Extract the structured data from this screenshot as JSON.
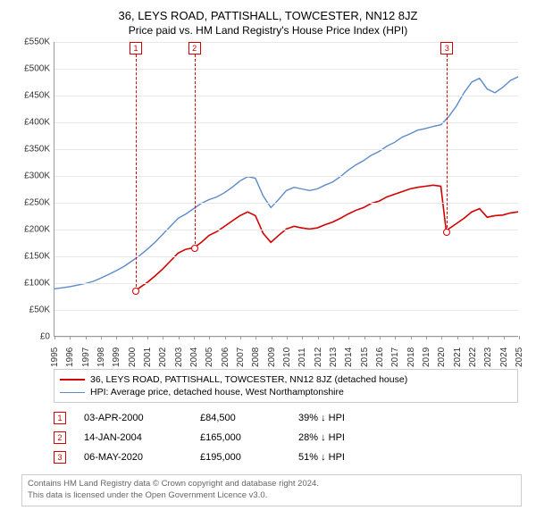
{
  "title": "36, LEYS ROAD, PATTISHALL, TOWCESTER, NN12 8JZ",
  "subtitle": "Price paid vs. HM Land Registry's House Price Index (HPI)",
  "chart": {
    "type": "line",
    "background_color": "#ffffff",
    "grid_color": "#e8e8e8",
    "axis_color": "#999999",
    "x": {
      "min": 1995,
      "max": 2025,
      "ticks": [
        1995,
        1996,
        1997,
        1998,
        1999,
        2000,
        2001,
        2002,
        2003,
        2004,
        2005,
        2006,
        2007,
        2008,
        2009,
        2010,
        2011,
        2012,
        2013,
        2014,
        2015,
        2016,
        2017,
        2018,
        2019,
        2020,
        2021,
        2022,
        2023,
        2024,
        2025
      ],
      "label_fontsize": 10,
      "label_rotation_deg": -90
    },
    "y": {
      "min": 0,
      "max": 550000,
      "ticks": [
        0,
        50000,
        100000,
        150000,
        200000,
        250000,
        300000,
        350000,
        400000,
        450000,
        500000,
        550000
      ],
      "tick_labels": [
        "£0",
        "£50K",
        "£100K",
        "£150K",
        "£200K",
        "£250K",
        "£300K",
        "£350K",
        "£400K",
        "£450K",
        "£500K",
        "£550K"
      ],
      "label_fontsize": 10
    },
    "series": [
      {
        "name": "price_paid",
        "label": "36, LEYS ROAD, PATTISHALL, TOWCESTER, NN12 8JZ (detached house)",
        "color": "#d40000",
        "line_width": 1.6,
        "x": [
          2000.25,
          2000.5,
          2001,
          2001.5,
          2002,
          2002.5,
          2003,
          2003.5,
          2004.04,
          2004.5,
          2005,
          2005.5,
          2006,
          2006.5,
          2007,
          2007.5,
          2008,
          2008.5,
          2009,
          2009.5,
          2010,
          2010.5,
          2011,
          2011.5,
          2012,
          2012.5,
          2013,
          2013.5,
          2014,
          2014.5,
          2015,
          2015.5,
          2016,
          2016.5,
          2017,
          2017.5,
          2018,
          2018.5,
          2019,
          2019.5,
          2020,
          2020.35,
          2020.5,
          2021,
          2021.5,
          2022,
          2022.5,
          2023,
          2023.5,
          2024,
          2024.5,
          2025
        ],
        "y": [
          84500,
          90000,
          100000,
          112000,
          125000,
          140000,
          155000,
          162000,
          165000,
          175000,
          188000,
          195000,
          205000,
          215000,
          225000,
          232000,
          225000,
          192000,
          175000,
          188000,
          200000,
          205000,
          202000,
          200000,
          202000,
          208000,
          213000,
          220000,
          228000,
          235000,
          240000,
          248000,
          252000,
          260000,
          265000,
          270000,
          275000,
          278000,
          280000,
          282000,
          280000,
          195000,
          200000,
          210000,
          220000,
          232000,
          238000,
          222000,
          225000,
          226000,
          230000,
          232000
        ]
      },
      {
        "name": "hpi",
        "label": "HPI: Average price, detached house, West Northamptonshire",
        "color": "#5b8bc9",
        "line_width": 1.4,
        "x": [
          1995,
          1995.5,
          1996,
          1996.5,
          1997,
          1997.5,
          1998,
          1998.5,
          1999,
          1999.5,
          2000,
          2000.5,
          2001,
          2001.5,
          2002,
          2002.5,
          2003,
          2003.5,
          2004,
          2004.5,
          2005,
          2005.5,
          2006,
          2006.5,
          2007,
          2007.5,
          2008,
          2008.5,
          2009,
          2009.5,
          2010,
          2010.5,
          2011,
          2011.5,
          2012,
          2012.5,
          2013,
          2013.5,
          2014,
          2014.5,
          2015,
          2015.5,
          2016,
          2016.5,
          2017,
          2017.5,
          2018,
          2018.5,
          2019,
          2019.5,
          2020,
          2020.5,
          2021,
          2021.5,
          2022,
          2022.5,
          2023,
          2023.5,
          2024,
          2024.5,
          2025
        ],
        "y": [
          88000,
          90000,
          92000,
          95000,
          98000,
          102000,
          108000,
          115000,
          122000,
          130000,
          140000,
          150000,
          162000,
          175000,
          190000,
          205000,
          220000,
          228000,
          238000,
          248000,
          255000,
          260000,
          268000,
          278000,
          290000,
          298000,
          295000,
          262000,
          240000,
          255000,
          272000,
          278000,
          275000,
          272000,
          275000,
          282000,
          288000,
          298000,
          310000,
          320000,
          328000,
          338000,
          345000,
          355000,
          362000,
          372000,
          378000,
          385000,
          388000,
          392000,
          395000,
          410000,
          430000,
          455000,
          475000,
          482000,
          462000,
          455000,
          465000,
          478000,
          485000
        ]
      }
    ],
    "event_markers": [
      {
        "n": "1",
        "x": 2000.25,
        "y": 84500,
        "color": "#d40000"
      },
      {
        "n": "2",
        "x": 2004.04,
        "y": 165000,
        "color": "#d40000"
      },
      {
        "n": "3",
        "x": 2020.35,
        "y": 195000,
        "color": "#d40000"
      }
    ]
  },
  "legend": {
    "border_color": "#cccccc",
    "items": [
      {
        "color": "#d40000",
        "width": 2,
        "label": "36, LEYS ROAD, PATTISHALL, TOWCESTER, NN12 8JZ (detached house)"
      },
      {
        "color": "#5b8bc9",
        "width": 1.5,
        "label": "HPI: Average price, detached house, West Northamptonshire"
      }
    ]
  },
  "events_table": {
    "rows": [
      {
        "n": "1",
        "color": "#d40000",
        "date": "03-APR-2000",
        "price": "£84,500",
        "delta": "39% ↓ HPI"
      },
      {
        "n": "2",
        "color": "#d40000",
        "date": "14-JAN-2004",
        "price": "£165,000",
        "delta": "28% ↓ HPI"
      },
      {
        "n": "3",
        "color": "#d40000",
        "date": "06-MAY-2020",
        "price": "£195,000",
        "delta": "51% ↓ HPI"
      }
    ]
  },
  "footer": {
    "line1": "Contains HM Land Registry data © Crown copyright and database right 2024.",
    "line2": "This data is licensed under the Open Government Licence v3.0.",
    "border_color": "#cccccc",
    "text_color": "#666666"
  }
}
